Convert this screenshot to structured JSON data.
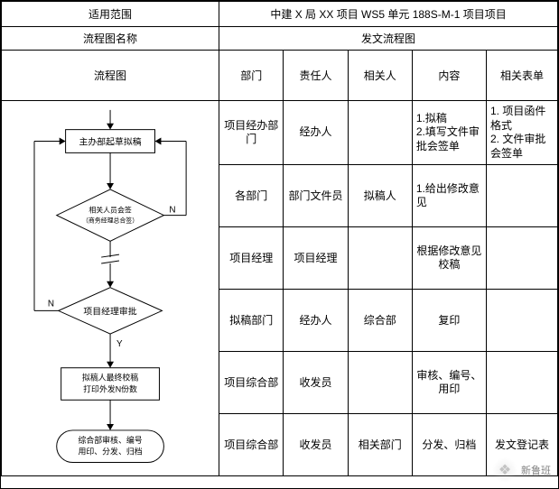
{
  "header": {
    "scope_label": "适用范围",
    "scope_value": "中建 X 局 XX 项目 WS5 单元 188S-M-1 项目项目",
    "name_label": "流程图名称",
    "name_value": "发文流程图",
    "flow_label": "流程图"
  },
  "columns": {
    "c1": "部门",
    "c2": "责任人",
    "c3": "相关人",
    "c4": "内容",
    "c5": "相关表单"
  },
  "rows": [
    {
      "dept": "项目经办部门",
      "resp": "经办人",
      "rel": "",
      "content": "1.拟稿\n2.填写文件审批会签单",
      "forms": "1. 项目函件格式\n2. 文件审批会签单"
    },
    {
      "dept": "各部门",
      "resp": "部门文件员",
      "rel": "拟稿人",
      "content": "1.给出修改意见",
      "forms": ""
    },
    {
      "dept": "项目经理",
      "resp": "项目经理",
      "rel": "",
      "content": "根据修改意见校稿",
      "forms": ""
    },
    {
      "dept": "拟稿部门",
      "resp": "经办人",
      "rel": "综合部",
      "content": "复印",
      "forms": ""
    },
    {
      "dept": "项目综合部",
      "resp": "收发员",
      "rel": "",
      "content": "审核、编号、用印",
      "forms": ""
    },
    {
      "dept": "项目综合部",
      "resp": "收发员",
      "rel": "相关部门",
      "content": "分发、归档",
      "forms": "发文登记表"
    }
  ],
  "flow": {
    "box1": "主办部起草拟稿",
    "diamond1": "相关人员会签\n（商务经理总合签）",
    "diamond2": "项目经理审批",
    "box2": "拟稿人最终校稿\n打印外发N份数",
    "rounded": "综合部审核、编号\n用印、分发、归档",
    "label_n": "N",
    "label_y": "Y",
    "colors": {
      "stroke": "#000000",
      "fill": "#ffffff",
      "text": "#000000"
    },
    "font_size": 10,
    "line_width": 1
  },
  "watermark": {
    "icon": "❖",
    "text": "新鲁班"
  }
}
